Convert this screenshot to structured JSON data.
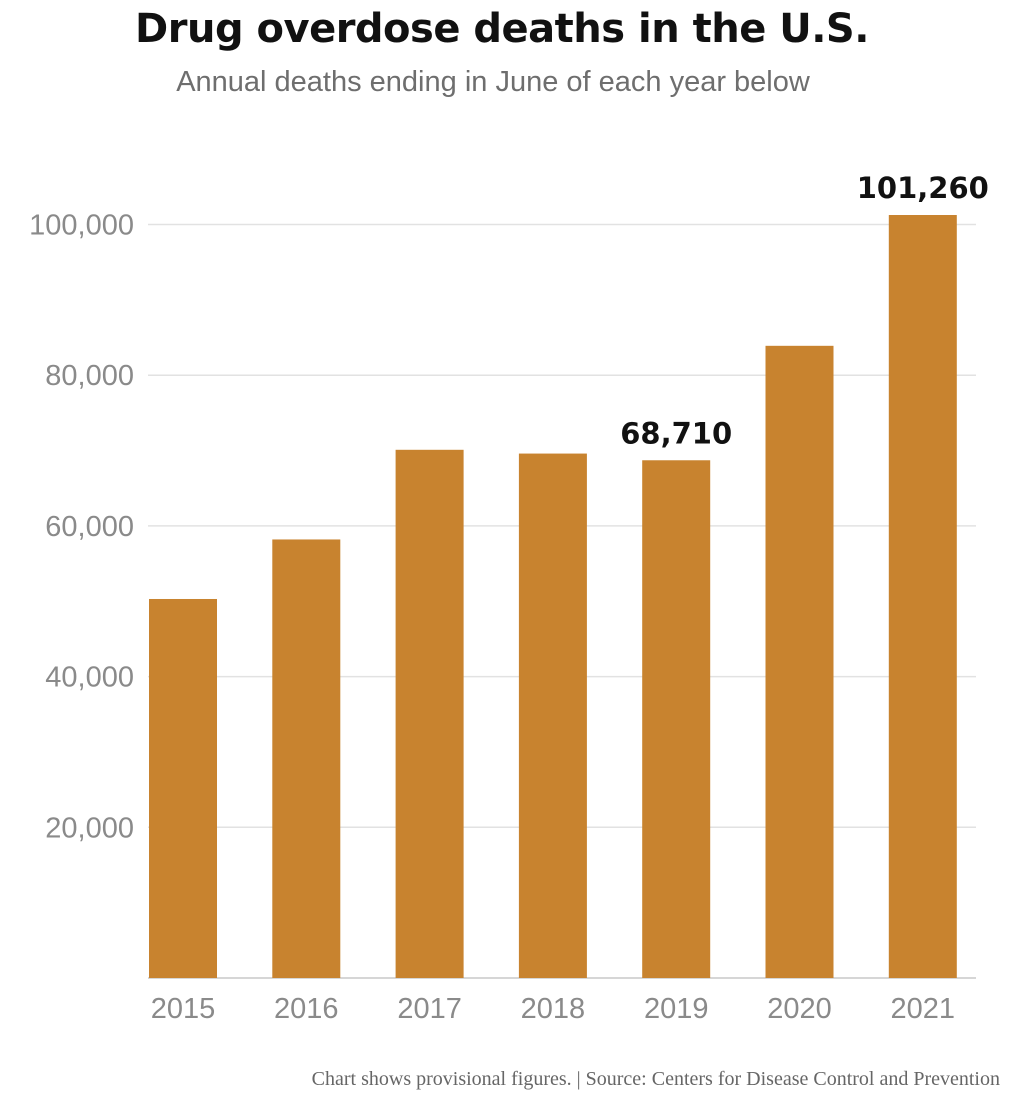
{
  "header": {
    "title": "Drug overdose deaths in the U.S.",
    "subtitle": "Annual deaths ending in June of each year below"
  },
  "footer": {
    "note": "Chart shows provisional figures. | Source: Centers for Disease Control and Prevention"
  },
  "colors": {
    "bar": "#C8832F",
    "grid": "#e2e2e2",
    "axis": "#c8c8c8"
  },
  "chart_data": {
    "type": "bar",
    "title": "Drug overdose deaths in the U.S.",
    "subtitle": "Annual deaths ending in June of each year below",
    "xlabel": "",
    "ylabel": "",
    "categories": [
      "2015",
      "2016",
      "2017",
      "2018",
      "2019",
      "2020",
      "2021"
    ],
    "values": [
      50300,
      58200,
      70100,
      69600,
      68710,
      83900,
      101260
    ],
    "data_labels": [
      {
        "category": "2019",
        "text": "68,710"
      },
      {
        "category": "2021",
        "text": "101,260"
      }
    ],
    "ylim": [
      0,
      105000
    ],
    "yticks": [
      20000,
      40000,
      60000,
      80000,
      100000
    ],
    "ytick_labels": [
      "20,000",
      "40,000",
      "60,000",
      "80,000",
      "100,000"
    ],
    "grid": true,
    "legend": "none"
  }
}
